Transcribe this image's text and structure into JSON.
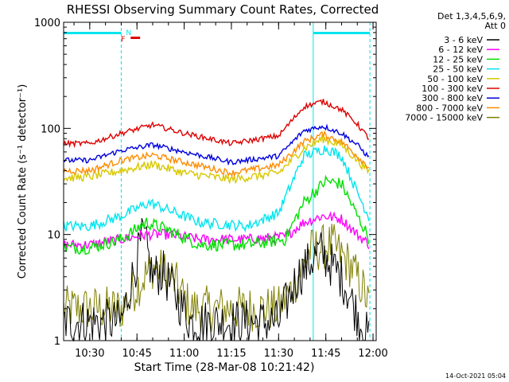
{
  "chart_data": {
    "type": "line",
    "title": "RHESSI Observing Summary Count Rates, Corrected",
    "xlabel": "Start Time (28-Mar-08 10:21:42)",
    "ylabel": "Corrected Count Rate (s⁻¹ detector⁻¹)",
    "yscale": "log",
    "ylim": [
      1,
      1000
    ],
    "xlim": [
      "10:21:42",
      "12:01:00"
    ],
    "x_ticks": [
      "10:30",
      "10:45",
      "11:00",
      "11:15",
      "11:30",
      "11:45",
      "12:00"
    ],
    "y_ticks": [
      "1",
      "10",
      "100",
      "1000"
    ],
    "legend_header": [
      "Det 1,3,4,5,6,9,",
      "Att 0"
    ],
    "legend_position": "right",
    "annotations": {
      "night": {
        "label": "N",
        "color": "#00e5ee",
        "intervals": [
          [
            "10:21:42",
            "10:40:00"
          ],
          [
            "11:41:00",
            "11:59:00"
          ]
        ]
      },
      "flare": {
        "label": "F",
        "color": "#dd0000",
        "intervals": [
          [
            "10:43:00",
            "10:46:00"
          ]
        ]
      },
      "vertical_markers": [
        {
          "time": "10:21:42",
          "style": "solid"
        },
        {
          "time": "10:40:00",
          "style": "dashed"
        },
        {
          "time": "11:41:00",
          "style": "solid"
        },
        {
          "time": "11:59:00",
          "style": "dashed"
        }
      ]
    },
    "series": [
      {
        "name": "3 - 6 keV",
        "color": "#000000",
        "x": [
          "10:21:42",
          "10:40:00",
          "10:47:00",
          "10:50:00",
          "10:53:00",
          "11:02:00",
          "11:30:00",
          "11:36:00",
          "11:43:00",
          "11:50:00",
          "11:56:00",
          "11:59:00"
        ],
        "y": [
          1.5,
          1.5,
          10,
          4,
          4.5,
          1.5,
          1.5,
          4,
          7,
          4,
          1.5,
          1
        ]
      },
      {
        "name": "6 - 12 keV",
        "color": "#ff00ff",
        "x": [
          "10:21:42",
          "10:30:00",
          "10:40:00",
          "10:48:00",
          "10:55:00",
          "11:05:00",
          "11:20:00",
          "11:32:00",
          "11:38:00",
          "11:44:00",
          "11:50:00",
          "11:55:00",
          "11:59:00"
        ],
        "y": [
          8,
          8,
          9,
          10,
          10,
          9,
          9,
          9.5,
          13,
          15,
          14,
          10,
          8
        ]
      },
      {
        "name": "12 - 25 keV",
        "color": "#00e000",
        "x": [
          "10:21:42",
          "10:30:00",
          "10:40:00",
          "10:48:00",
          "10:55:00",
          "11:05:00",
          "11:20:00",
          "11:32:00",
          "11:38:00",
          "11:45:00",
          "11:50:00",
          "11:55:00",
          "11:59:00"
        ],
        "y": [
          7.5,
          7.5,
          9,
          13,
          11,
          8,
          8,
          9,
          20,
          32,
          30,
          15,
          9
        ]
      },
      {
        "name": "25 - 50 keV",
        "color": "#00e5ee",
        "x": [
          "10:21:42",
          "10:30:00",
          "10:40:00",
          "10:49:00",
          "10:55:00",
          "11:05:00",
          "11:20:00",
          "11:30:00",
          "11:38:00",
          "11:45:00",
          "11:50:00",
          "11:55:00",
          "11:59:00"
        ],
        "y": [
          12,
          12,
          15,
          20,
          17,
          13,
          12,
          16,
          55,
          65,
          55,
          25,
          14
        ]
      },
      {
        "name": "50 - 100 keV",
        "color": "#d8c800",
        "x": [
          "10:21:42",
          "10:30:00",
          "10:40:00",
          "10:50:00",
          "11:00:00",
          "11:15:00",
          "11:30:00",
          "11:38:00",
          "11:44:00",
          "11:50:00",
          "11:55:00",
          "11:59:00"
        ],
        "y": [
          34,
          35,
          40,
          46,
          38,
          33,
          38,
          65,
          80,
          70,
          50,
          38
        ]
      },
      {
        "name": "100 - 300 keV",
        "color": "#dd0000",
        "x": [
          "10:21:42",
          "10:30:00",
          "10:40:00",
          "10:50:00",
          "11:00:00",
          "11:15:00",
          "11:30:00",
          "11:38:00",
          "11:44:00",
          "11:50:00",
          "11:55:00",
          "11:59:00"
        ],
        "y": [
          72,
          72,
          90,
          108,
          90,
          72,
          85,
          160,
          180,
          150,
          110,
          78
        ]
      },
      {
        "name": "300 - 800 keV",
        "color": "#0000dd",
        "x": [
          "10:21:42",
          "10:30:00",
          "10:40:00",
          "10:50:00",
          "11:00:00",
          "11:15:00",
          "11:30:00",
          "11:38:00",
          "11:44:00",
          "11:50:00",
          "11:55:00",
          "11:59:00"
        ],
        "y": [
          50,
          50,
          62,
          70,
          60,
          48,
          55,
          95,
          105,
          90,
          70,
          52
        ]
      },
      {
        "name": "800 - 7000 keV",
        "color": "#ff8c00",
        "x": [
          "10:21:42",
          "10:30:00",
          "10:40:00",
          "10:50:00",
          "11:00:00",
          "11:15:00",
          "11:30:00",
          "11:38:00",
          "11:44:00",
          "11:50:00",
          "11:55:00",
          "11:59:00"
        ],
        "y": [
          40,
          40,
          50,
          56,
          48,
          38,
          45,
          75,
          88,
          75,
          55,
          42
        ]
      },
      {
        "name": "7000 - 15000 keV",
        "color": "#808000",
        "x": [
          "10:21:42",
          "10:40:00",
          "10:44:00",
          "10:50:00",
          "10:56:00",
          "11:02:00",
          "11:30:00",
          "11:34:00",
          "11:40:00",
          "11:47:00",
          "11:53:00",
          "11:57:00",
          "11:59:00"
        ],
        "y": [
          2,
          2,
          3,
          5,
          4,
          2,
          2,
          3,
          7,
          8,
          5,
          3,
          2
        ]
      }
    ]
  },
  "footer": {
    "timestamp": "14-Oct-2021 05:04"
  }
}
